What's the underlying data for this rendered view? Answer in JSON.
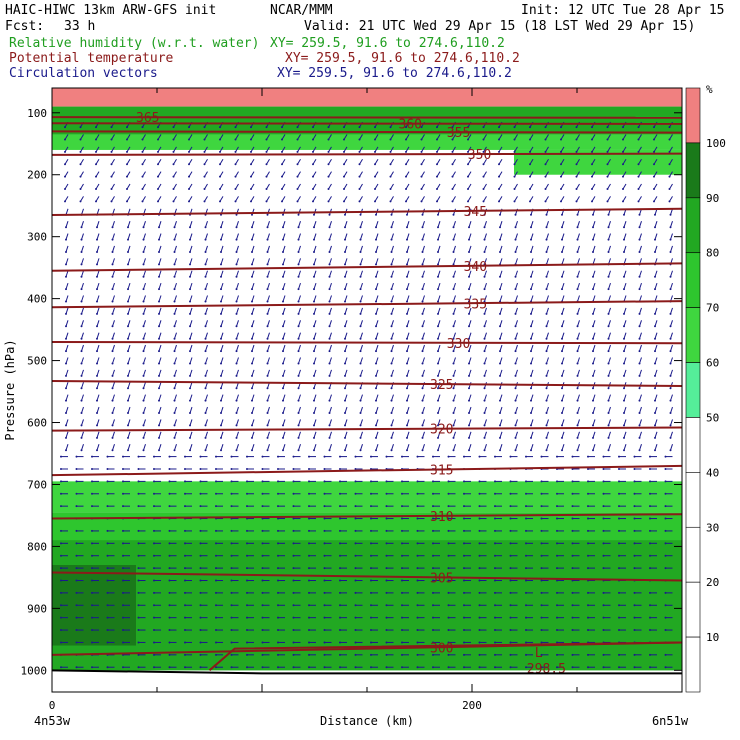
{
  "header": {
    "title_left": "HAIC-HIWC 13km ARW-GFS init",
    "center_org": "NCAR/MMM",
    "init_text": "Init: 12 UTC Tue 28 Apr 15",
    "fcst_label": "Fcst:",
    "fcst_value": "33 h",
    "valid_text": "Valid: 21 UTC Wed 29 Apr 15 (18 LST Wed 29 Apr 15)",
    "fields": [
      {
        "name": "Relative humidity (w.r.t. water)",
        "xy": "XY= 259.5, 91.6 to 274.6,110.2",
        "color": "#1f9e1f"
      },
      {
        "name": "Potential temperature",
        "xy": "XY= 259.5, 91.6 to 274.6,110.2",
        "color": "#8b1a1a"
      },
      {
        "name": "Circulation vectors",
        "xy": "XY= 259.5, 91.6 to 274.6,110.2",
        "color": "#1a1a8b"
      }
    ]
  },
  "chart_data": {
    "type": "heatmap",
    "xlabel": "Distance (km)",
    "ylabel": "Pressure (hPa)",
    "x_ticks": [
      "0",
      "200"
    ],
    "x_tick_values": [
      0,
      200
    ],
    "xlim": [
      0,
      300
    ],
    "y_ticks": [
      "100",
      "200",
      "300",
      "400",
      "500",
      "600",
      "700",
      "800",
      "900",
      "1000"
    ],
    "y_tick_values": [
      100,
      200,
      300,
      400,
      500,
      600,
      700,
      800,
      900,
      1000
    ],
    "ylim": [
      1035,
      60
    ],
    "x_start_label": "4n53w",
    "x_end_label": "6n51w",
    "colorbar": {
      "unit": "%",
      "levels": [
        10,
        20,
        30,
        40,
        50,
        60,
        70,
        80,
        90,
        100
      ],
      "colors": [
        "#ffffff",
        "#ffffff",
        "#ffffff",
        "#ffffff",
        "#ffffff",
        "#55ee99",
        "#3fd63f",
        "#2ec62e",
        "#22a822",
        "#1a7a1a",
        "#f08080"
      ],
      "shaded_from": 50
    },
    "theta_contours": [
      {
        "value": "365",
        "label_x": 40,
        "y_left": 107,
        "y_right": 108
      },
      {
        "value": "360",
        "label_x": 165,
        "y_left": 117,
        "y_right": 118
      },
      {
        "value": "355",
        "label_x": 188,
        "y_left": 130,
        "y_right": 132
      },
      {
        "value": "350",
        "label_x": 198,
        "y_left": 168,
        "y_right": 166
      },
      {
        "value": "345",
        "label_x": 196,
        "y_left": 265,
        "y_right": 255
      },
      {
        "value": "340",
        "label_x": 196,
        "y_left": 355,
        "y_right": 343
      },
      {
        "value": "335",
        "label_x": 196,
        "y_left": 414,
        "y_right": 404
      },
      {
        "value": "330",
        "label_x": 188,
        "y_left": 470,
        "y_right": 472
      },
      {
        "value": "325",
        "label_x": 180,
        "y_left": 533,
        "y_right": 541
      },
      {
        "value": "320",
        "label_x": 180,
        "y_left": 613,
        "y_right": 608
      },
      {
        "value": "315",
        "label_x": 180,
        "y_left": 685,
        "y_right": 670
      },
      {
        "value": "310",
        "label_x": 180,
        "y_left": 755,
        "y_right": 748
      },
      {
        "value": "305",
        "label_x": 180,
        "y_left": 842,
        "y_right": 855
      },
      {
        "value": "300",
        "label_x": 180,
        "y_left": 975,
        "y_right": 955
      }
    ],
    "min_label": "298.5",
    "min_marker": "L",
    "min_x": 228,
    "min_p": 985,
    "rh_regions": [
      {
        "level": 100,
        "x": [
          0,
          300
        ],
        "p": [
          60,
          90
        ]
      },
      {
        "level": 80,
        "x": [
          0,
          300
        ],
        "p": [
          90,
          135
        ]
      },
      {
        "level": 60,
        "x": [
          0,
          300
        ],
        "p": [
          135,
          160
        ]
      },
      {
        "level": 60,
        "x": [
          220,
          300
        ],
        "p": [
          160,
          200
        ]
      },
      {
        "level": 60,
        "x": [
          0,
          300
        ],
        "p": [
          695,
          745
        ]
      },
      {
        "level": 70,
        "x": [
          0,
          300
        ],
        "p": [
          745,
          1000
        ]
      },
      {
        "level": 80,
        "x": [
          0,
          300
        ],
        "p": [
          790,
          1000
        ]
      },
      {
        "level": 90,
        "x": [
          0,
          40
        ],
        "p": [
          830,
          960
        ]
      }
    ],
    "vectors": {
      "rows_hPa": [
        115,
        135,
        155,
        175,
        195,
        215,
        235,
        255,
        275,
        295,
        315,
        335,
        355,
        375,
        395,
        415,
        435,
        455,
        475,
        495,
        515,
        535,
        555,
        575,
        595,
        615,
        635,
        655,
        675,
        695,
        715,
        735,
        755,
        775,
        795,
        815,
        835,
        855,
        875,
        895,
        915,
        935,
        955,
        975,
        995
      ]
    }
  }
}
